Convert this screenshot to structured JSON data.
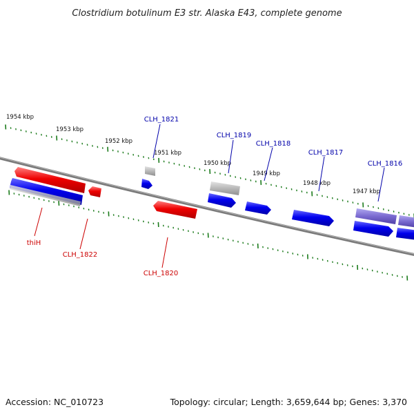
{
  "title": "Clostridium botulinum E3 str. Alaska E43, complete genome",
  "footer": {
    "accession": "Accession: NC_010723",
    "summary": "Topology: circular; Length: 3,659,644 bp; Genes: 3,370"
  },
  "colors": {
    "forward_gene": "#0000ee",
    "reverse_gene": "#ee0000",
    "other_feature": "#b0b0b0",
    "highlight_feature": "#7a6ad0",
    "ticks": "#1a7a1a",
    "backbone": "#7a7a7a",
    "forward_label": "#0000aa",
    "reverse_label": "#cc0000"
  },
  "ruler_labels": [
    "1954 kbp",
    "1953 kbp",
    "1952 kbp",
    "1951 kbp",
    "1950 kbp",
    "1949 kbp",
    "1948 kbp",
    "1947 kbp"
  ],
  "gene_labels": {
    "forward": [
      "CLH_1821",
      "CLH_1819",
      "CLH_1818",
      "CLH_1817",
      "CLH_1816"
    ],
    "reverse": [
      "thiH",
      "CLH_1822",
      "CLH_1820"
    ]
  }
}
